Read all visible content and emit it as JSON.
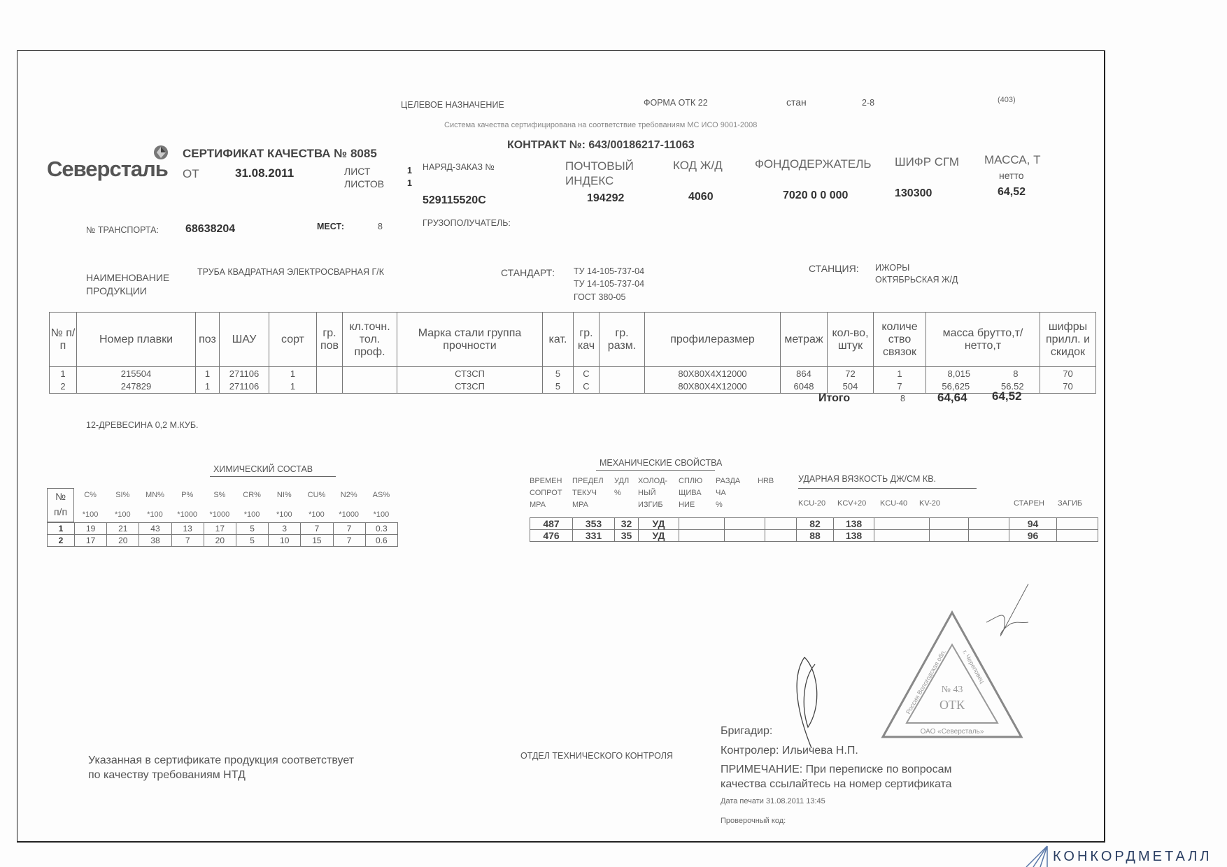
{
  "top": {
    "purpose": "ЦЕЛЕВОЕ НАЗНАЧЕНИЕ",
    "form": "ФОРМА ОТК 22",
    "mill_label": "стан",
    "mill": "2-8",
    "code": "(403)",
    "iso": "Система качества сертифицирована на соответствие требованиям МС ИСО 9001-2008"
  },
  "logo": {
    "name": "Северсталь",
    "icon": "severstal-diamond-icon"
  },
  "cert": {
    "title": "СЕРТИФИКАТ КАЧЕСТВА № 8085",
    "from_label": "ОТ",
    "date": "31.08.2011",
    "sheet_label": "ЛИСТ",
    "sheet": "1",
    "sheets_label": "ЛИСТОВ",
    "sheets": "1",
    "contract": "КОНТРАКТ №: 643/00186217-11063"
  },
  "info": {
    "order_label": "НАРЯД-ЗАКАЗ №",
    "order": "529115520С",
    "postal_label1": "ПОЧТОВЫЙ",
    "postal_label2": "ИНДЕКС",
    "postal": "194292",
    "rail_label": "КОД Ж/Д",
    "rail": "4060",
    "holder_label": "ФОНДОДЕРЖАТЕЛЬ",
    "holder": "7020 0 0 000",
    "sgm_label": "ШИФР СГМ",
    "sgm": "130300",
    "mass_label": "МАССА, Т",
    "mass_sub": "нетто",
    "mass": "64,52",
    "transport_label": "№ ТРАНСПОРТА:",
    "transport": "68638204",
    "places_label": "МЕСТ:",
    "places": "8",
    "consignee_label": "ГРУЗОПОЛУЧАТЕЛЬ:",
    "product_label1": "НАИМЕНОВАНИЕ",
    "product_label2": "ПРОДУКЦИИ",
    "product": "ТРУБА КВАДРАТНАЯ ЭЛЕКТРОСВАРНАЯ Г/К",
    "standard_label": "СТАНДАРТ:",
    "standards": [
      "ТУ 14-105-737-04",
      "ТУ 14-105-737-04",
      "ГОСТ 380-05"
    ],
    "station_label": "СТАНЦИЯ:",
    "station1": "ИЖОРЫ",
    "station2": "ОКТЯБРЬСКАЯ Ж/Д"
  },
  "main_table": {
    "headers": [
      "№ п/п",
      "Номер плавки",
      "поз",
      "ШАУ",
      "сорт",
      "гр. пов",
      "кл.точн. тол. проф.",
      "Марка стали группа прочности",
      "кат.",
      "гр. кач",
      "гр. разм.",
      "профилеразмер",
      "метраж",
      "кол-во, штук",
      "количе ство связок",
      "масса брутто,т/нетто,т",
      "шифры прилл. и скидок"
    ],
    "rows": [
      [
        "1",
        "215504",
        "1",
        "271106",
        "1",
        "",
        "",
        "СТ3СП",
        "5",
        "С",
        "",
        "80X80X4X12000",
        "864",
        "72",
        "1",
        [
          "8,015",
          "8"
        ],
        "70"
      ],
      [
        "2",
        "247829",
        "1",
        "271106",
        "1",
        "",
        "",
        "СТ3СП",
        "5",
        "С",
        "",
        "80X80X4X12000",
        "6048",
        "504",
        "7",
        [
          "56,625",
          "56.52"
        ],
        "70"
      ]
    ],
    "total_label": "Итого",
    "total_bundles": "8",
    "total_gross": "64,64",
    "total_net": "64,52"
  },
  "wood_note": "12-ДРЕВЕСИНА 0,2 М.КУБ.",
  "chem": {
    "title": "ХИМИЧЕСКИЙ СОСТАВ",
    "num_label1": "№",
    "num_label2": "п/п",
    "elements": [
      "C%",
      "SI%",
      "MN%",
      "P%",
      "S%",
      "CR%",
      "NI%",
      "CU%",
      "N2%",
      "AS%"
    ],
    "multipliers": [
      "*100",
      "*100",
      "*100",
      "*1000",
      "*1000",
      "*100",
      "*100",
      "*100",
      "*1000",
      "*100"
    ],
    "rows": [
      [
        "1",
        "19",
        "21",
        "43",
        "13",
        "17",
        "5",
        "3",
        "7",
        "7",
        "0.3"
      ],
      [
        "2",
        "17",
        "20",
        "38",
        "7",
        "20",
        "5",
        "10",
        "15",
        "7",
        "0.6"
      ]
    ]
  },
  "mech": {
    "title": "МЕХАНИЧЕСКИЕ СВОЙСТВА",
    "headers": [
      [
        "ВРЕМЕН",
        "СОПРОТ",
        "MPA"
      ],
      [
        "ПРЕДЕЛ",
        "ТЕКУЧ",
        "MPA"
      ],
      [
        "УДЛ",
        "%",
        ""
      ],
      [
        "ХОЛОД-",
        "НЫЙ",
        "ИЗГИБ"
      ],
      [
        "СПЛЮ",
        "ЩИВА",
        "НИЕ"
      ],
      [
        "РАЗДА",
        "ЧА",
        "%"
      ],
      [
        "HRB",
        "",
        ""
      ]
    ],
    "impact_title": "УДАРНАЯ ВЯЗКОСТЬ ДЖ/СМ КВ.",
    "impact_headers": [
      "KCU-20",
      "KCV+20",
      "KCU-40",
      "KV-20"
    ],
    "aged_label": "СТАРЕН",
    "bend_label": "ЗАГИБ",
    "rows": [
      [
        "487",
        "353",
        "32",
        "УД",
        "",
        "",
        "",
        "82",
        "138",
        "",
        "",
        "",
        "94",
        ""
      ],
      [
        "476",
        "331",
        "35",
        "УД",
        "",
        "",
        "",
        "88",
        "138",
        "",
        "",
        "",
        "96",
        ""
      ]
    ]
  },
  "footer": {
    "compliance1": "Указанная в сертификате продукция соответствует",
    "compliance2": "по качеству требованиям НТД",
    "dept": "ОТДЕЛ ТЕХНИЧЕСКОГО КОНТРОЛЯ",
    "foreman": "Бригадир:",
    "controller": "Контролер: Ильичева Н.П.",
    "note1": "ПРИМЕЧАНИЕ: При переписке по вопросам",
    "note2": "качества ссылайтесь на номер сертификата",
    "print_date": "Дата печати 31.08.2011 13:45",
    "check_code": "Проверочный код:"
  },
  "stamp": {
    "number": "№ 43",
    "dept": "ОТК",
    "company": "ОАО «Северсталь»",
    "city": "г. Череповец",
    "region": "Россия Вологодская обл."
  },
  "watermark": "КОНКОРДМЕТАЛЛ"
}
